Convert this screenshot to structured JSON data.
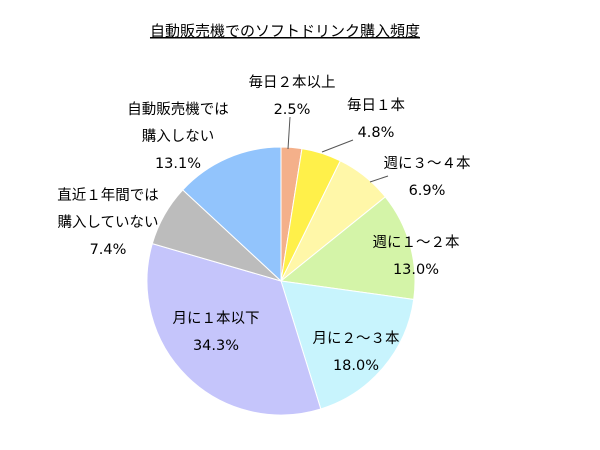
{
  "chart_data": {
    "type": "pie",
    "title": "自動販売機でのソフトドリンク購入頻度",
    "start": "top",
    "direction": "clockwise",
    "slices": [
      {
        "label": [
          "毎日２本以上"
        ],
        "value": 2.5,
        "value_text": "2.5%",
        "color": "#f4b08a"
      },
      {
        "label": [
          "毎日１本"
        ],
        "value": 4.8,
        "value_text": "4.8%",
        "color": "#fff04a"
      },
      {
        "label": [
          "週に３～４本"
        ],
        "value": 6.9,
        "value_text": "6.9%",
        "color": "#fff7a8"
      },
      {
        "label": [
          "週に１～２本"
        ],
        "value": 13.0,
        "value_text": "13.0%",
        "color": "#d4f4a8"
      },
      {
        "label": [
          "月に２～３本"
        ],
        "value": 18.0,
        "value_text": "18.0%",
        "color": "#c8f4fd"
      },
      {
        "label": [
          "月に１本以下"
        ],
        "value": 34.3,
        "value_text": "34.3%",
        "color": "#c5c5fb"
      },
      {
        "label": [
          "直近１年間では",
          "購入していない"
        ],
        "value": 7.4,
        "value_text": "7.4%",
        "color": "#bcbcbc"
      },
      {
        "label": [
          "自動販売機では",
          "購入しない"
        ],
        "value": 13.1,
        "value_text": "13.1%",
        "color": "#92c4fc"
      }
    ]
  }
}
